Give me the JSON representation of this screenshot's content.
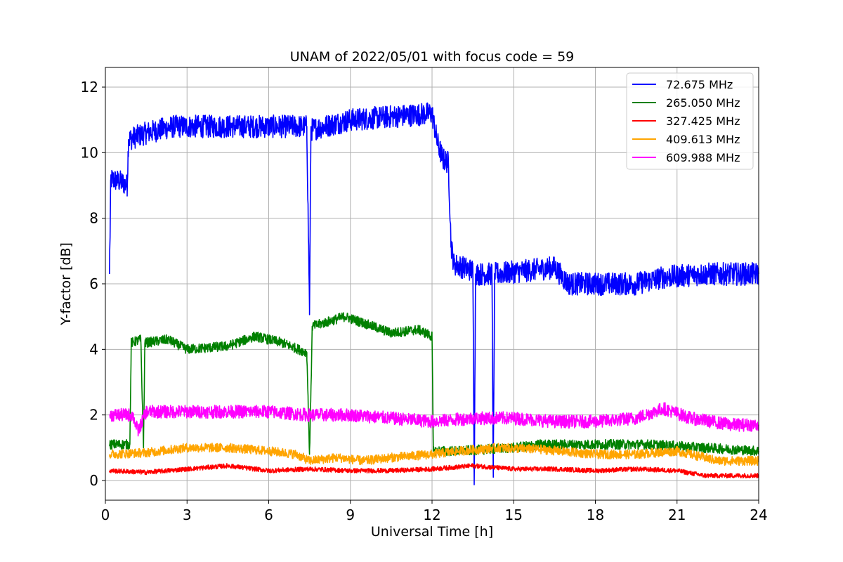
{
  "chart_data": {
    "type": "line",
    "title": "UNAM of 2022/05/01 with focus code = 59",
    "xlabel": "Universal Time [h]",
    "ylabel": "Y-factor [dB]",
    "xlim": [
      0,
      24
    ],
    "ylim": [
      -0.6,
      12.6
    ],
    "xticks": [
      0,
      3,
      6,
      9,
      12,
      15,
      18,
      21,
      24
    ],
    "yticks": [
      0,
      2,
      4,
      6,
      8,
      10,
      12
    ],
    "grid": true,
    "legend_position": "top-right",
    "series": [
      {
        "name": " 72.675 MHz",
        "color": "#0000ff",
        "noise": 0.35,
        "points": [
          [
            0.15,
            6.3
          ],
          [
            0.2,
            9.2
          ],
          [
            0.6,
            9.1
          ],
          [
            0.8,
            9.0
          ],
          [
            0.85,
            10.4
          ],
          [
            1.5,
            10.6
          ],
          [
            2.5,
            10.8
          ],
          [
            4.5,
            10.8
          ],
          [
            6.5,
            10.8
          ],
          [
            7.4,
            10.8
          ],
          [
            7.5,
            5.2
          ],
          [
            7.55,
            10.7
          ],
          [
            9.0,
            11.0
          ],
          [
            10.5,
            11.1
          ],
          [
            12.0,
            11.2
          ],
          [
            12.2,
            10.3
          ],
          [
            12.4,
            9.8
          ],
          [
            12.6,
            9.7
          ],
          [
            12.7,
            7.2
          ],
          [
            12.8,
            6.6
          ],
          [
            13.5,
            6.4
          ],
          [
            13.55,
            0.1
          ],
          [
            13.6,
            6.3
          ],
          [
            14.2,
            6.3
          ],
          [
            14.25,
            0.1
          ],
          [
            14.3,
            6.3
          ],
          [
            15.5,
            6.4
          ],
          [
            16.5,
            6.5
          ],
          [
            17.0,
            6.0
          ],
          [
            18.0,
            6.0
          ],
          [
            19.5,
            6.0
          ],
          [
            20.5,
            6.2
          ],
          [
            22.0,
            6.3
          ],
          [
            24.0,
            6.3
          ]
        ]
      },
      {
        "name": "265.050 MHz",
        "color": "#008000",
        "noise": 0.15,
        "points": [
          [
            0.15,
            1.1
          ],
          [
            0.9,
            1.1
          ],
          [
            0.95,
            4.2
          ],
          [
            1.3,
            4.3
          ],
          [
            1.4,
            1.0
          ],
          [
            1.45,
            4.2
          ],
          [
            2.3,
            4.3
          ],
          [
            3.0,
            4.0
          ],
          [
            4.5,
            4.1
          ],
          [
            5.5,
            4.4
          ],
          [
            6.5,
            4.2
          ],
          [
            7.4,
            3.9
          ],
          [
            7.5,
            0.8
          ],
          [
            7.6,
            4.7
          ],
          [
            8.8,
            5.0
          ],
          [
            9.5,
            4.8
          ],
          [
            10.5,
            4.5
          ],
          [
            11.5,
            4.6
          ],
          [
            12.0,
            4.4
          ],
          [
            12.05,
            0.9
          ],
          [
            13.0,
            0.9
          ],
          [
            15.0,
            1.0
          ],
          [
            16.0,
            1.1
          ],
          [
            18.0,
            1.1
          ],
          [
            20.0,
            1.1
          ],
          [
            22.0,
            1.0
          ],
          [
            24.0,
            0.9
          ]
        ]
      },
      {
        "name": "327.425 MHz",
        "color": "#ff0000",
        "noise": 0.07,
        "points": [
          [
            0.15,
            0.3
          ],
          [
            1.5,
            0.25
          ],
          [
            3.0,
            0.35
          ],
          [
            4.5,
            0.45
          ],
          [
            6.0,
            0.3
          ],
          [
            7.5,
            0.35
          ],
          [
            9.0,
            0.3
          ],
          [
            10.5,
            0.3
          ],
          [
            12.0,
            0.35
          ],
          [
            13.5,
            0.45
          ],
          [
            15.0,
            0.35
          ],
          [
            16.5,
            0.35
          ],
          [
            18.0,
            0.3
          ],
          [
            19.5,
            0.35
          ],
          [
            21.0,
            0.3
          ],
          [
            22.0,
            0.15
          ],
          [
            24.0,
            0.15
          ]
        ]
      },
      {
        "name": "409.613 MHz",
        "color": "#ffa500",
        "noise": 0.14,
        "points": [
          [
            0.15,
            0.8
          ],
          [
            1.5,
            0.85
          ],
          [
            3.0,
            1.0
          ],
          [
            4.5,
            1.0
          ],
          [
            6.0,
            0.9
          ],
          [
            7.0,
            0.8
          ],
          [
            7.5,
            0.6
          ],
          [
            8.5,
            0.7
          ],
          [
            9.5,
            0.6
          ],
          [
            10.5,
            0.7
          ],
          [
            12.0,
            0.8
          ],
          [
            13.0,
            0.9
          ],
          [
            14.5,
            1.0
          ],
          [
            16.0,
            0.95
          ],
          [
            18.0,
            0.8
          ],
          [
            19.5,
            0.8
          ],
          [
            21.0,
            0.9
          ],
          [
            22.5,
            0.6
          ],
          [
            24.0,
            0.6
          ]
        ]
      },
      {
        "name": "609.988 MHz",
        "color": "#ff00ff",
        "noise": 0.2,
        "points": [
          [
            0.15,
            2.0
          ],
          [
            1.0,
            2.0
          ],
          [
            1.2,
            1.5
          ],
          [
            1.5,
            2.1
          ],
          [
            3.0,
            2.1
          ],
          [
            4.5,
            2.1
          ],
          [
            6.0,
            2.1
          ],
          [
            7.5,
            2.0
          ],
          [
            9.0,
            2.0
          ],
          [
            10.5,
            1.9
          ],
          [
            12.0,
            1.8
          ],
          [
            13.5,
            1.9
          ],
          [
            15.0,
            1.9
          ],
          [
            16.5,
            1.8
          ],
          [
            18.0,
            1.8
          ],
          [
            19.5,
            1.9
          ],
          [
            20.5,
            2.2
          ],
          [
            21.5,
            1.9
          ],
          [
            23.0,
            1.7
          ],
          [
            24.0,
            1.7
          ]
        ]
      }
    ]
  }
}
